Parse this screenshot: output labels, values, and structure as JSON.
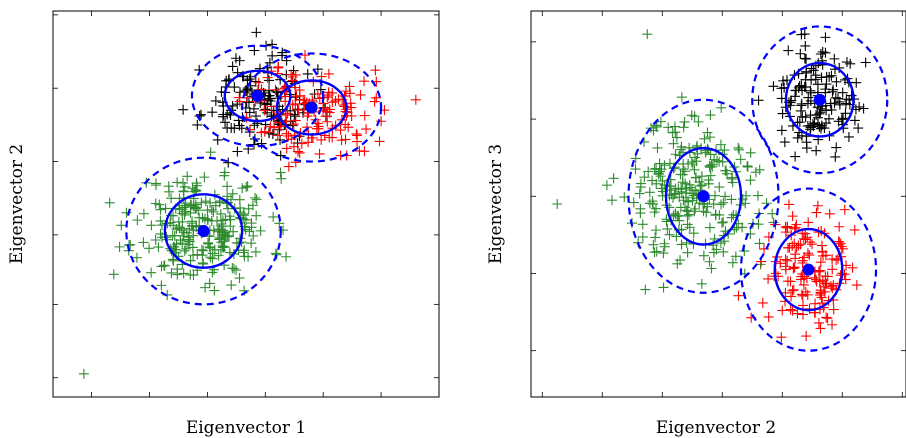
{
  "chart_data": [
    {
      "type": "scatter",
      "title": "",
      "xlabel": "Eigenvector 1",
      "ylabel": "Eigenvector 2",
      "xlim": [
        0,
        10
      ],
      "ylim": [
        0,
        10
      ],
      "grid": false,
      "legend": "none",
      "x_tick_values": [
        1,
        2.5,
        4,
        5.5,
        7,
        8.5,
        10
      ],
      "y_tick_values": [
        0.5,
        2.4,
        4.2,
        6.1,
        8,
        9.9
      ],
      "series": [
        {
          "color": "#2e8b2e",
          "marker": "plus",
          "cx": 3.9,
          "cy": 4.4,
          "sx": 1.15,
          "sy": 0.95,
          "n": 270,
          "seed": 11
        },
        {
          "color": "#000000",
          "marker": "plus",
          "cx": 5.3,
          "cy": 7.6,
          "sx": 0.95,
          "sy": 0.8,
          "n": 150,
          "seed": 23
        },
        {
          "color": "#ff0000",
          "marker": "plus",
          "cx": 6.7,
          "cy": 7.4,
          "sx": 1.05,
          "sy": 0.8,
          "n": 150,
          "seed": 37
        }
      ],
      "outliers": [
        {
          "x": 0.8,
          "y": 0.6,
          "series": 0
        },
        {
          "x": 9.4,
          "y": 7.7,
          "series": 2
        }
      ],
      "gaussians": [
        {
          "mean": [
            3.9,
            4.3
          ],
          "std": [
            1.0,
            0.95
          ],
          "color": "#0000ff"
        },
        {
          "mean": [
            5.3,
            7.8
          ],
          "std": [
            0.85,
            0.65
          ],
          "color": "#0000ff"
        },
        {
          "mean": [
            6.7,
            7.5
          ],
          "std": [
            0.9,
            0.7
          ],
          "color": "#0000ff"
        }
      ]
    },
    {
      "type": "scatter",
      "title": "",
      "xlabel": "Eigenvector 2",
      "ylabel": "Eigenvector 3",
      "xlim": [
        0,
        10
      ],
      "ylim": [
        0,
        10
      ],
      "grid": false,
      "legend": "none",
      "x_tick_values": [
        0.3,
        1.9,
        3.5,
        5.1,
        6.7,
        8.3,
        9.9
      ],
      "y_tick_values": [
        1.2,
        3.2,
        5.2,
        7.2,
        9.2
      ],
      "series": [
        {
          "color": "#2e8b2e",
          "marker": "plus",
          "cx": 4.3,
          "cy": 5.2,
          "sx": 1.2,
          "sy": 1.3,
          "n": 270,
          "seed": 51
        },
        {
          "color": "#000000",
          "marker": "plus",
          "cx": 7.6,
          "cy": 7.6,
          "sx": 0.7,
          "sy": 0.9,
          "n": 150,
          "seed": 67
        },
        {
          "color": "#ff0000",
          "marker": "plus",
          "cx": 7.4,
          "cy": 3.4,
          "sx": 0.8,
          "sy": 1.0,
          "n": 150,
          "seed": 79
        }
      ],
      "outliers": [
        {
          "x": 0.7,
          "y": 5.0,
          "series": 0
        },
        {
          "x": 3.1,
          "y": 9.4,
          "series": 0
        }
      ],
      "gaussians": [
        {
          "mean": [
            4.6,
            5.2
          ],
          "std": [
            1.0,
            1.25
          ],
          "color": "#0000ff"
        },
        {
          "mean": [
            7.7,
            7.7
          ],
          "std": [
            0.9,
            0.95
          ],
          "color": "#0000ff"
        },
        {
          "mean": [
            7.4,
            3.3
          ],
          "std": [
            0.9,
            1.05
          ],
          "color": "#0000ff"
        }
      ]
    }
  ]
}
